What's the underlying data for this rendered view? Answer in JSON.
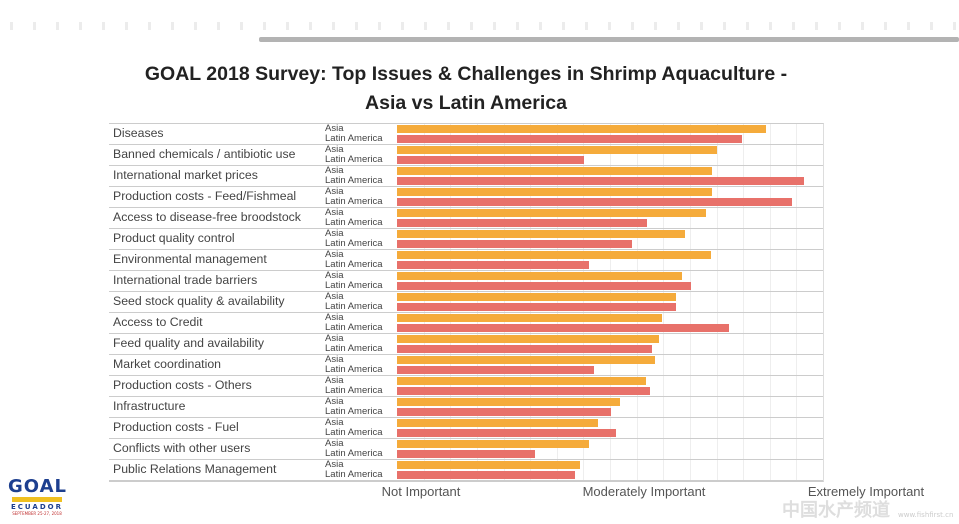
{
  "chart_data": {
    "type": "bar",
    "orientation": "horizontal",
    "title": "GOAL 2018 Survey: Top Issues & Challenges in Shrimp Aquaculture - Asia vs Latin America",
    "title_lines": [
      "GOAL 2018 Survey: Top Issues & Challenges in Shrimp Aquaculture -",
      "Asia vs Latin America"
    ],
    "categories": [
      "Diseases",
      "Banned chemicals / antibiotic use",
      "International market prices",
      "Production costs - Feed/Fishmeal",
      "Access to disease-free broodstock",
      "Product quality control",
      "Environmental management",
      "International trade barriers",
      "Seed stock quality & availability",
      "Access to Credit",
      "Feed quality and availability",
      "Market coordination",
      "Production costs - Others",
      "Infrastructure",
      "Production costs - Fuel",
      "Conflicts with other users",
      "Public Relations Management"
    ],
    "series": [
      {
        "name": "Asia",
        "color": "#f5ab3b",
        "values": [
          86.6,
          75,
          74,
          74,
          72.5,
          67.6,
          73.7,
          66.9,
          65.5,
          62.2,
          61.5,
          60.6,
          58.5,
          52.3,
          47.2,
          45.1,
          43
        ]
      },
      {
        "name": "Latin America",
        "color": "#e8716a",
        "values": [
          81,
          44,
          95.5,
          92.7,
          58.7,
          55.2,
          45,
          69,
          65.5,
          77.9,
          59.9,
          46.2,
          59.4,
          50.2,
          51.4,
          32.4,
          41.8
        ]
      }
    ],
    "xlim": [
      0,
      100
    ],
    "x_tick_labels": [
      "Not Important",
      "Moderately Important",
      "Extremely Important"
    ],
    "grid": true,
    "legend": "none"
  },
  "logo": {
    "text": "GOAL",
    "sub": "ECUADOR",
    "date": "SEPTEMBER 25-27, 2018"
  },
  "watermark": {
    "text": "中国水产频道",
    "url": "www.fishfirst.cn"
  }
}
